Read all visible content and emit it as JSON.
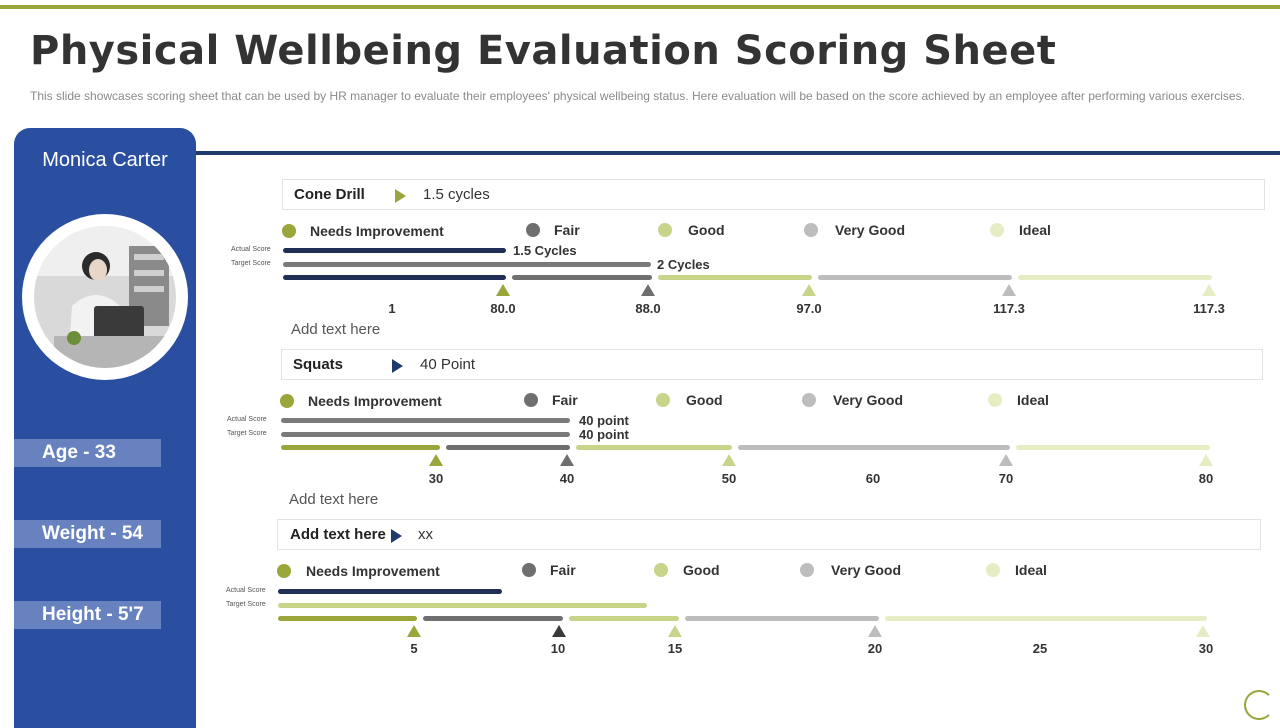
{
  "title": "Physical Wellbeing Evaluation Scoring Sheet",
  "subtitle": "This slide showcases scoring sheet that can be used by HR manager to evaluate their employees' physical wellbeing status. Here evaluation will be based on the score achieved by an employee after performing various exercises.",
  "profile": {
    "name": "Monica Carter",
    "age": "Age - 33",
    "weight": "Weight - 54",
    "height": "Height - 5'7"
  },
  "legend": [
    "Needs Improvement",
    "Fair",
    "Good",
    "Very Good",
    "Ideal"
  ],
  "colors": {
    "needs_improvement": "#9aa53a",
    "fair": "#6f6f6f",
    "good": "#c8d48a",
    "very_good": "#bdbdbd",
    "ideal": "#e6edc4",
    "actual_dark": "#1f2f55",
    "sidebar": "#2a4fa1"
  },
  "labels": {
    "actual": "Actual Score",
    "target": "Target Score"
  },
  "sections": [
    {
      "name": "Cone Drill",
      "value": "1.5 cycles",
      "actual_label": "1.5 Cycles",
      "target_label": "2 Cycles",
      "ticks": [
        "1",
        "80.0",
        "88.0",
        "97.0",
        "117.3",
        "117.3"
      ],
      "note": "Add text here"
    },
    {
      "name": "Squats",
      "value": "40 Point",
      "actual_label": "40 point",
      "target_label": "40 point",
      "ticks": [
        "30",
        "40",
        "50",
        "60",
        "70",
        "80"
      ],
      "note": "Add text here"
    },
    {
      "name": "Add  text here",
      "value": "xx",
      "actual_label": "",
      "target_label": "",
      "ticks": [
        "5",
        "10",
        "15",
        "20",
        "25",
        "30"
      ],
      "note": ""
    }
  ]
}
